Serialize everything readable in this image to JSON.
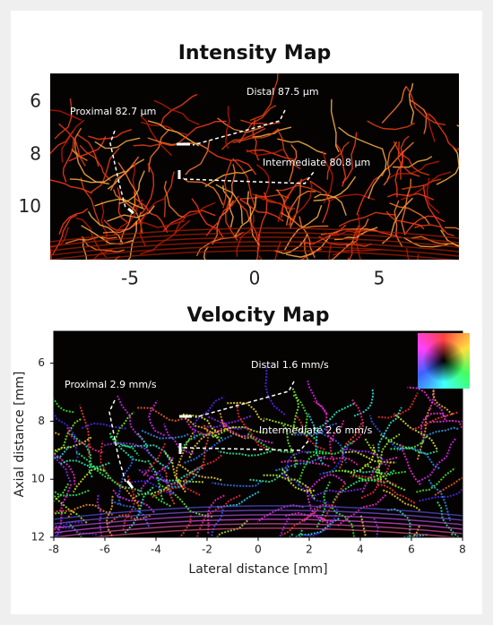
{
  "chart_data": [
    {
      "type": "image",
      "title": "Intensity Map",
      "colormap": "hot",
      "xlim": [
        -8.2,
        8.2
      ],
      "xticks": [
        -5,
        0,
        5
      ],
      "ylim": [
        12,
        4.9
      ],
      "yticks": [
        6,
        8,
        10
      ],
      "annotations": [
        "Proximal 82.7 µm",
        "Distal 87.5 µm",
        "Intermediate 80.8 µm"
      ]
    },
    {
      "type": "image",
      "title": "Velocity Map",
      "colormap": "hsv",
      "frame": true,
      "colorwheel": true,
      "xlabel": "Lateral distance [mm]",
      "ylabel": "Axial distance [mm]",
      "xlim": [
        -8,
        8
      ],
      "xticks": [
        -8,
        -6,
        -4,
        -2,
        0,
        2,
        4,
        6,
        8
      ],
      "ylim": [
        12,
        4.9
      ],
      "yticks": [
        6,
        8,
        10,
        12
      ],
      "annotations": [
        "Proximal 2.9 mm/s",
        "Distal 1.6 mm/s",
        "Intermediate 2.6 mm/s"
      ]
    }
  ]
}
